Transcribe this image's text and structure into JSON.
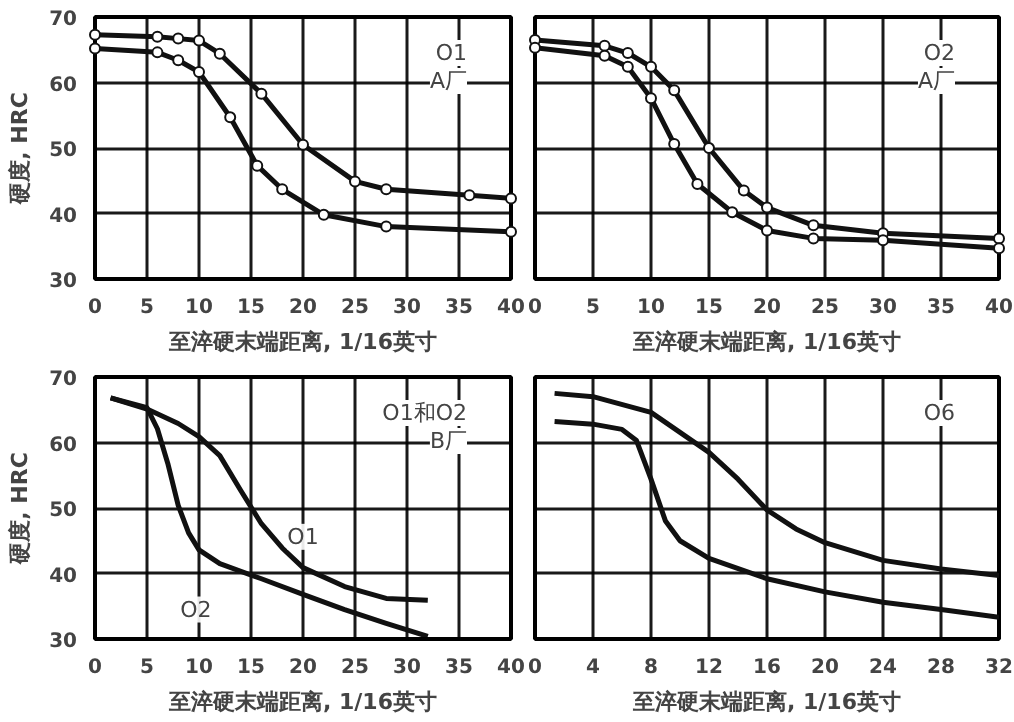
{
  "chart_data": [
    {
      "type": "line",
      "xlabel": "至淬硬末端距离, 1/16英寸",
      "ylabel": "硬度, HRC",
      "xlim": [
        0,
        40
      ],
      "ylim": [
        30,
        70
      ],
      "xticks": [
        0,
        5,
        10,
        15,
        20,
        25,
        30,
        35,
        40
      ],
      "yticks": [
        30,
        40,
        50,
        60,
        70
      ],
      "grid": true,
      "marker": "circle",
      "annotations": [
        "O1",
        "A厂"
      ],
      "series": [
        {
          "color": "#111111",
          "x": [
            0,
            6,
            8,
            10,
            12,
            16,
            20,
            25,
            28,
            36,
            40
          ],
          "values": [
            67.3,
            67,
            66.7,
            66.4,
            64.4,
            58.3,
            50.5,
            44.9,
            43.7,
            42.8,
            42.3
          ]
        },
        {
          "color": "#111111",
          "x": [
            0,
            6,
            8,
            10,
            13,
            15.6,
            18,
            22,
            28,
            40
          ],
          "values": [
            65.2,
            64.6,
            63.4,
            61.6,
            54.7,
            47.3,
            43.7,
            39.8,
            38,
            37.2
          ]
        }
      ]
    },
    {
      "type": "line",
      "xlabel": "至淬硬末端距离, 1/16英寸",
      "xlim": [
        0,
        40
      ],
      "ylim": [
        30,
        70
      ],
      "xticks": [
        0,
        5,
        10,
        15,
        20,
        25,
        30,
        35,
        40
      ],
      "yticks": [
        30,
        40,
        50,
        60,
        70
      ],
      "tick_labels": "x",
      "grid": true,
      "marker": "circle",
      "annotations": [
        "O2",
        "A厂"
      ],
      "series": [
        {
          "color": "#111111",
          "x": [
            0,
            6,
            8,
            10,
            12,
            15,
            18,
            20,
            24,
            30,
            40
          ],
          "values": [
            66.5,
            65.6,
            64.5,
            62.4,
            58.8,
            50,
            43.5,
            40.9,
            38.2,
            37,
            36.2
          ]
        },
        {
          "color": "#111111",
          "x": [
            0,
            6,
            8,
            10,
            12,
            14,
            17,
            20,
            24,
            30,
            40
          ],
          "values": [
            65.3,
            64.1,
            62.4,
            57.6,
            50.6,
            44.5,
            40.2,
            37.4,
            36.2,
            35.9,
            34.7
          ]
        }
      ]
    },
    {
      "type": "line",
      "xlabel": "至淬硬末端距离, 1/16英寸",
      "ylabel": "硬度, HRC",
      "xlim": [
        0,
        40
      ],
      "ylim": [
        30,
        70
      ],
      "xticks": [
        0,
        5,
        10,
        15,
        20,
        25,
        30,
        35,
        40
      ],
      "yticks": [
        30,
        40,
        50,
        60,
        70
      ],
      "grid": true,
      "annotations": [
        "O1和O2",
        "B厂",
        {
          "text": "O1",
          "x": 20,
          "y": 45.6
        },
        {
          "text": "O2",
          "x": 9.7,
          "y": 34.5
        }
      ],
      "series": [
        {
          "color": "#111111",
          "x": [
            1.5,
            5,
            8,
            10,
            12,
            14,
            16,
            18,
            20,
            24,
            28,
            32
          ],
          "values": [
            66.8,
            65.1,
            62.9,
            60.9,
            58,
            52.7,
            47.6,
            43.9,
            40.9,
            38,
            36.2,
            35.9
          ]
        },
        {
          "color": "#111111",
          "x": [
            1.5,
            5,
            6,
            7,
            8,
            9,
            10,
            12,
            16,
            20,
            24,
            28,
            32
          ],
          "values": [
            66.8,
            65.3,
            62.1,
            56.8,
            50.4,
            46.2,
            43.6,
            41.5,
            39.2,
            36.8,
            34.5,
            32.4,
            30.4
          ]
        }
      ]
    },
    {
      "type": "line",
      "xlabel": "至淬硬末端距离, 1/16英寸",
      "xlim": [
        0,
        32
      ],
      "ylim": [
        30,
        70
      ],
      "xticks": [
        0,
        4,
        8,
        12,
        16,
        20,
        24,
        28,
        32
      ],
      "yticks": [
        30,
        40,
        50,
        60,
        70
      ],
      "tick_labels": "x",
      "grid": true,
      "annotations": [
        "O6"
      ],
      "series": [
        {
          "color": "#111111",
          "x": [
            1.35,
            4,
            8,
            12,
            14,
            16,
            18,
            20,
            24,
            28,
            32
          ],
          "values": [
            67.5,
            67,
            64.6,
            58.5,
            54.4,
            49.7,
            46.8,
            44.7,
            42,
            40.7,
            39.7
          ]
        },
        {
          "color": "#111111",
          "x": [
            1.35,
            4,
            6,
            7,
            8,
            9,
            10,
            12,
            16,
            20,
            24,
            28,
            32
          ],
          "values": [
            63.2,
            62.8,
            62,
            60.3,
            54.4,
            48,
            45,
            42.3,
            39.2,
            37.2,
            35.6,
            34.5,
            33.3
          ]
        }
      ]
    }
  ]
}
